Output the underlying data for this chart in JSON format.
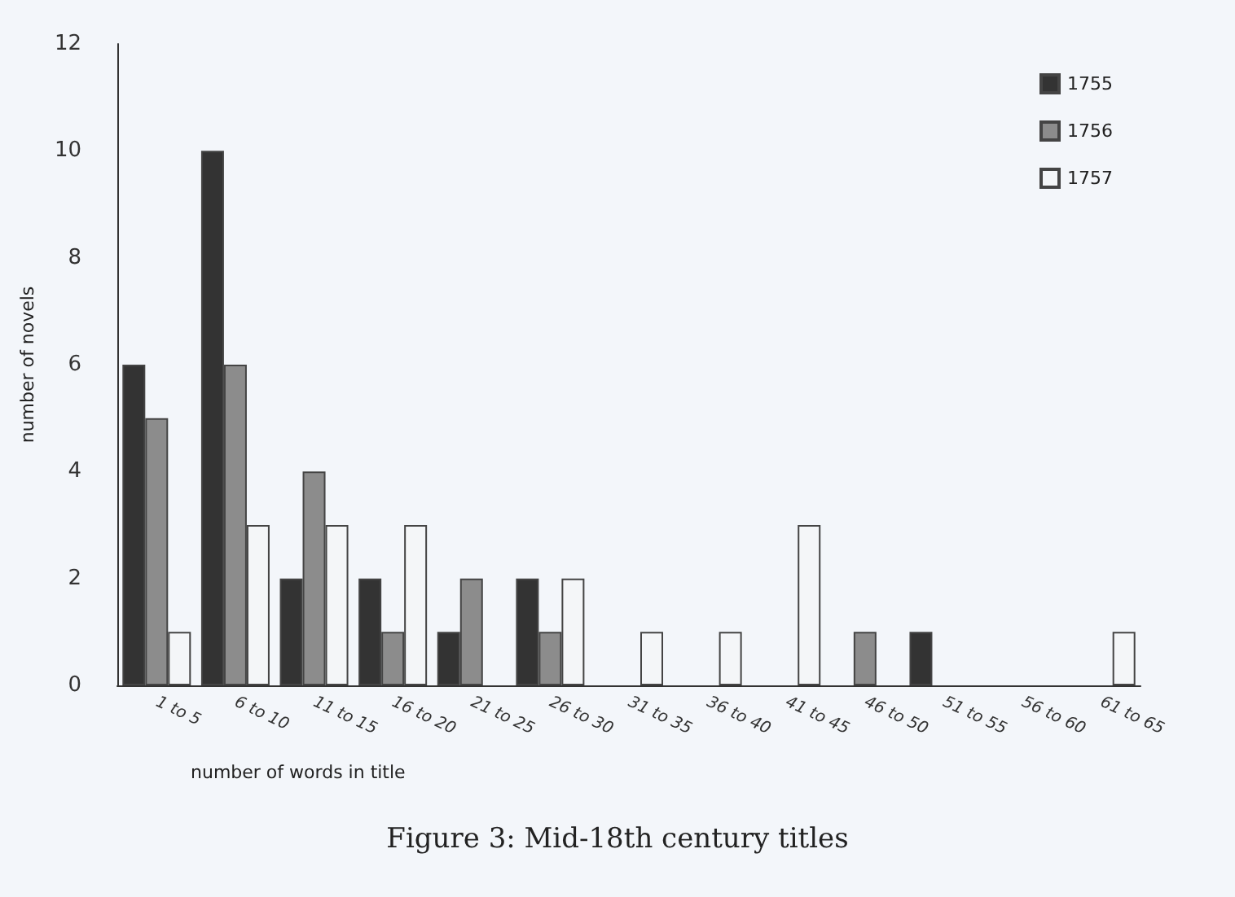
{
  "chart_data": {
    "type": "bar",
    "title": "Figure 3: Mid-18th century titles",
    "xlabel": "number of words in title",
    "ylabel": "number of novels",
    "categories": [
      "1 to 5",
      "6 to 10",
      "11 to 15",
      "16 to 20",
      "21 to 25",
      "26 to 30",
      "31 to 35",
      "36 to 40",
      "41 to 45",
      "46 to 50",
      "51 to 55",
      "56 to 60",
      "61 to 65"
    ],
    "series": [
      {
        "name": "1755",
        "color": "#333333",
        "values": [
          6,
          10,
          2,
          2,
          1,
          2,
          0,
          0,
          0,
          0,
          1,
          0,
          0
        ]
      },
      {
        "name": "1756",
        "color": "#8c8c8c",
        "values": [
          5,
          6,
          4,
          1,
          2,
          1,
          0,
          0,
          0,
          1,
          0,
          0,
          0
        ]
      },
      {
        "name": "1757",
        "color": "#f4f6f8",
        "values": [
          1,
          3,
          3,
          3,
          0,
          2,
          1,
          1,
          3,
          0,
          0,
          0,
          1
        ]
      }
    ],
    "ylim": [
      0,
      12
    ],
    "yticks": [
      0,
      2,
      4,
      6,
      8,
      10,
      12
    ],
    "grid": false,
    "legend": "top right"
  }
}
